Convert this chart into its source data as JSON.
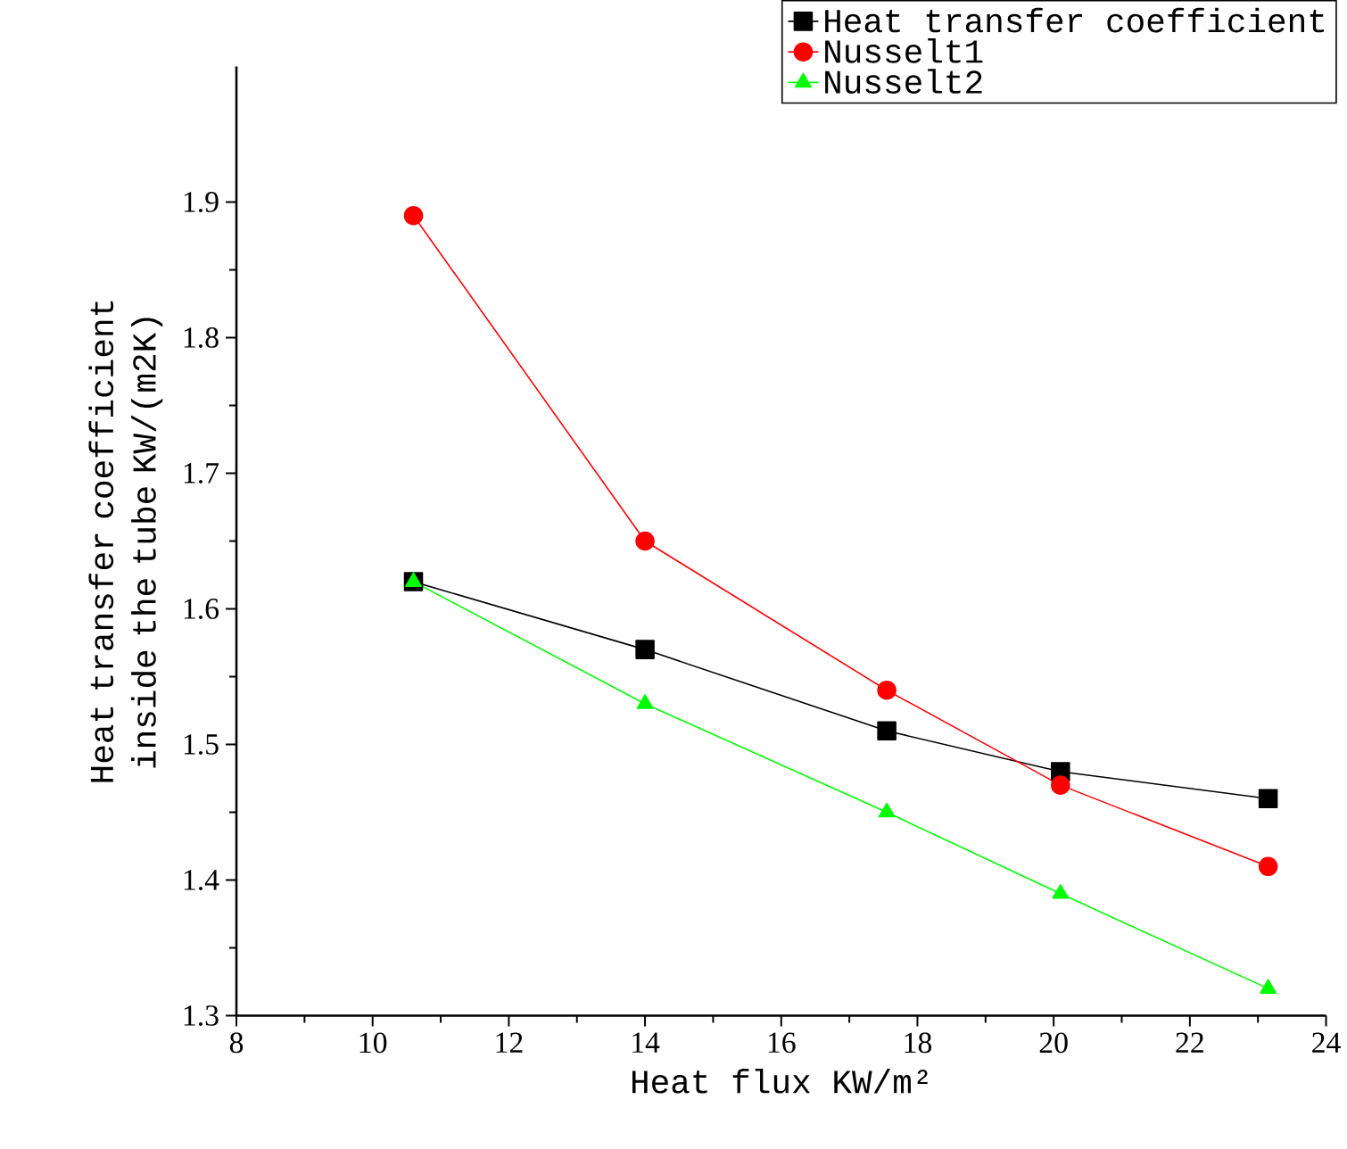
{
  "chart_data": {
    "type": "line",
    "xlabel": "Heat flux KW/m²",
    "ylabel": "Heat transfer coefficient inside the tube KW/(m2K)",
    "x": [
      10.6,
      14.0,
      17.55,
      20.1,
      23.15
    ],
    "series": [
      {
        "name": "Heat transfer coefficient",
        "color": "#000000",
        "marker": "square",
        "values": [
          1.62,
          1.57,
          1.51,
          1.48,
          1.46
        ]
      },
      {
        "name": "Nusselt1",
        "color": "#ff0000",
        "marker": "circle",
        "values": [
          1.89,
          1.65,
          1.54,
          1.47,
          1.41
        ]
      },
      {
        "name": "Nusselt2",
        "color": "#00ff00",
        "marker": "triangle",
        "values": [
          1.62,
          1.53,
          1.45,
          1.39,
          1.32
        ]
      }
    ],
    "xlim": [
      8,
      24
    ],
    "xticks": [
      8,
      10,
      12,
      14,
      16,
      18,
      20,
      22,
      24
    ],
    "ylim": [
      1.3,
      2.0
    ],
    "yticks": [
      1.3,
      1.4,
      1.5,
      1.6,
      1.7,
      1.8,
      1.9
    ],
    "grid": false,
    "legend": "top right",
    "line_style": "solid"
  }
}
